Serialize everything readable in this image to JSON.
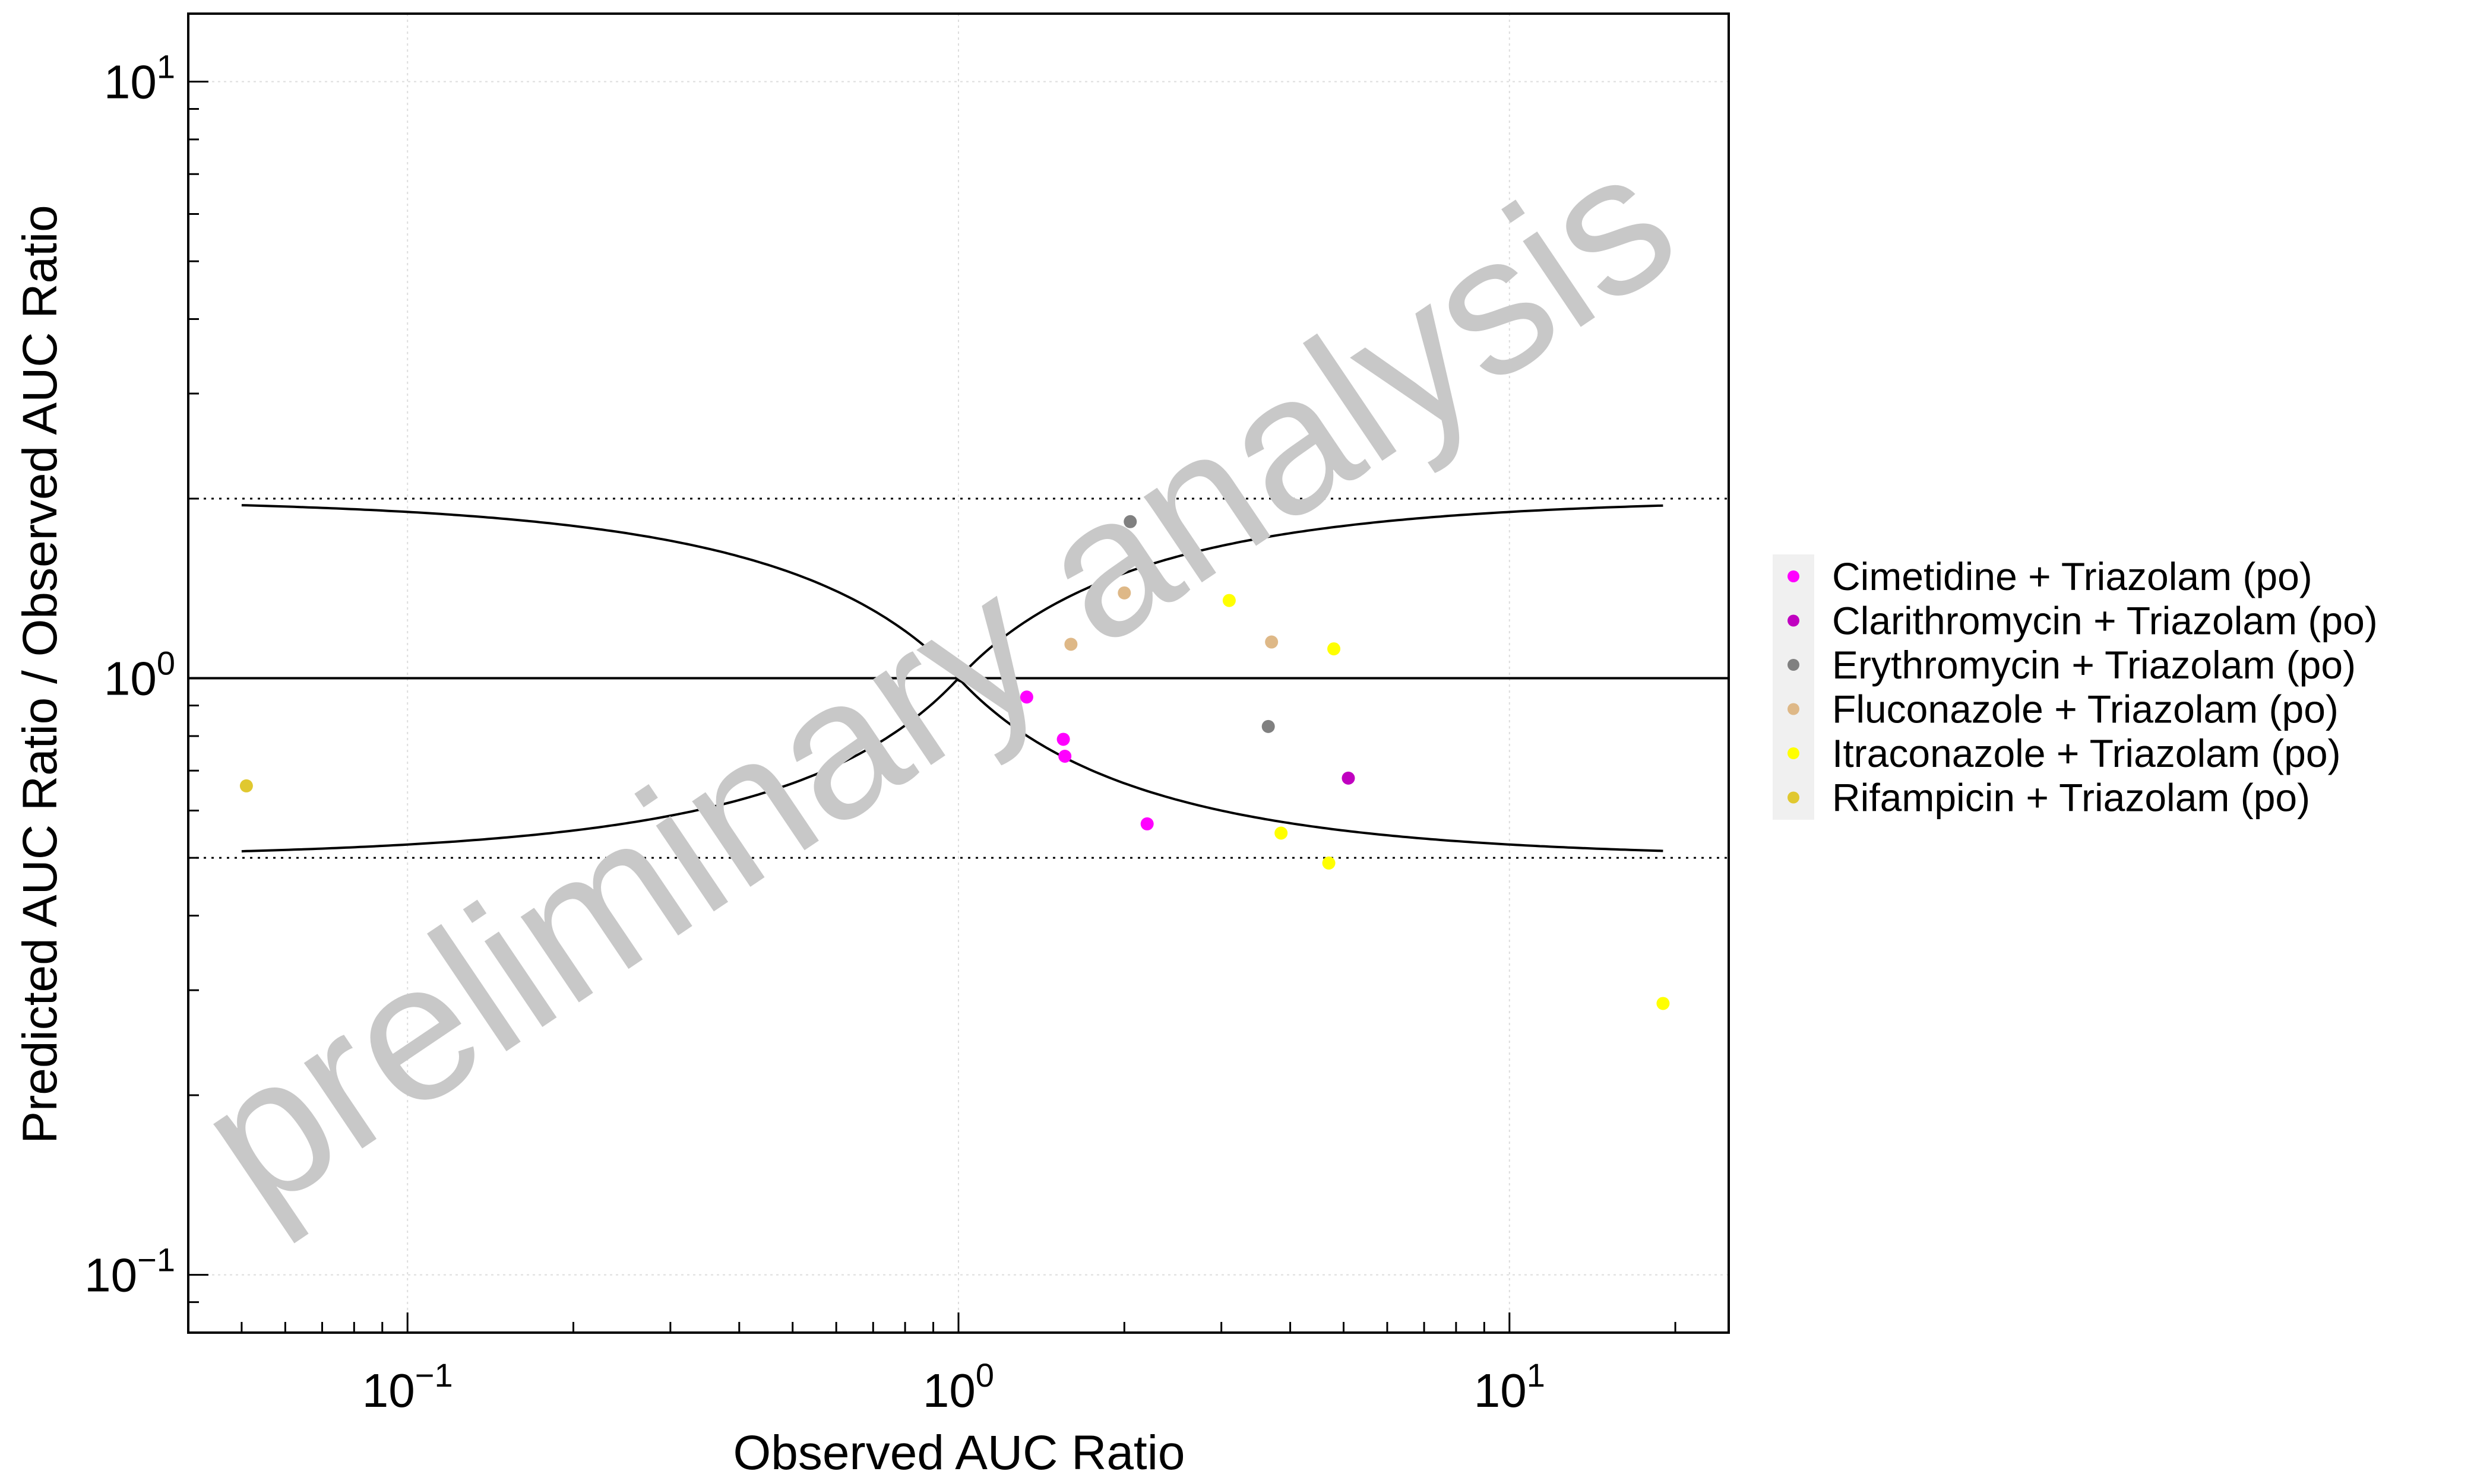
{
  "chart_data": {
    "type": "scatter",
    "xlabel": "Observed AUC Ratio",
    "ylabel": "Predicted AUC Ratio / Observed AUC Ratio",
    "x_scale": "log",
    "y_scale": "log",
    "xlim": [
      0.04,
      25
    ],
    "ylim": [
      0.08,
      13
    ],
    "grid": true,
    "x_ticks": [
      {
        "base": "10",
        "exp": "−1",
        "value": 0.1
      },
      {
        "base": "10",
        "exp": "0",
        "value": 1
      },
      {
        "base": "10",
        "exp": "1",
        "value": 10
      }
    ],
    "y_ticks": [
      {
        "base": "10",
        "exp": "−1",
        "value": 0.1
      },
      {
        "base": "10",
        "exp": "0",
        "value": 1
      },
      {
        "base": "10",
        "exp": "1",
        "value": 10
      }
    ],
    "reference_lines": {
      "identity": 1,
      "twofold_upper": 2,
      "twofold_lower": 0.5,
      "guest_curve_x_range": [
        0.05,
        19
      ]
    },
    "watermark": "preliminary analysis",
    "legend_position": "right",
    "series": [
      {
        "name": "Cimetidine + Triazolam (po)",
        "color": "#ff00ff",
        "points": [
          [
            1.33,
            0.93
          ],
          [
            1.55,
            0.79
          ],
          [
            1.56,
            0.74
          ],
          [
            2.2,
            0.57
          ]
        ]
      },
      {
        "name": "Clarithromycin + Triazolam (po)",
        "color": "#c000c0",
        "points": [
          [
            5.1,
            0.68
          ]
        ]
      },
      {
        "name": "Erythromycin + Triazolam (po)",
        "color": "#808080",
        "points": [
          [
            2.05,
            1.83
          ],
          [
            3.65,
            0.83
          ]
        ]
      },
      {
        "name": "Fluconazole + Triazolam (po)",
        "color": "#deb887",
        "points": [
          [
            1.6,
            1.14
          ],
          [
            2.0,
            1.39
          ],
          [
            3.7,
            1.15
          ]
        ]
      },
      {
        "name": "Itraconazole + Triazolam (po)",
        "color": "#ffff00",
        "points": [
          [
            3.1,
            1.35
          ],
          [
            4.8,
            1.12
          ],
          [
            3.85,
            0.55
          ],
          [
            4.7,
            0.49
          ],
          [
            19,
            0.285
          ]
        ]
      },
      {
        "name": "Rifampicin + Triazolam (po)",
        "color": "#e0c830",
        "points": [
          [
            0.051,
            0.66
          ]
        ]
      }
    ]
  }
}
